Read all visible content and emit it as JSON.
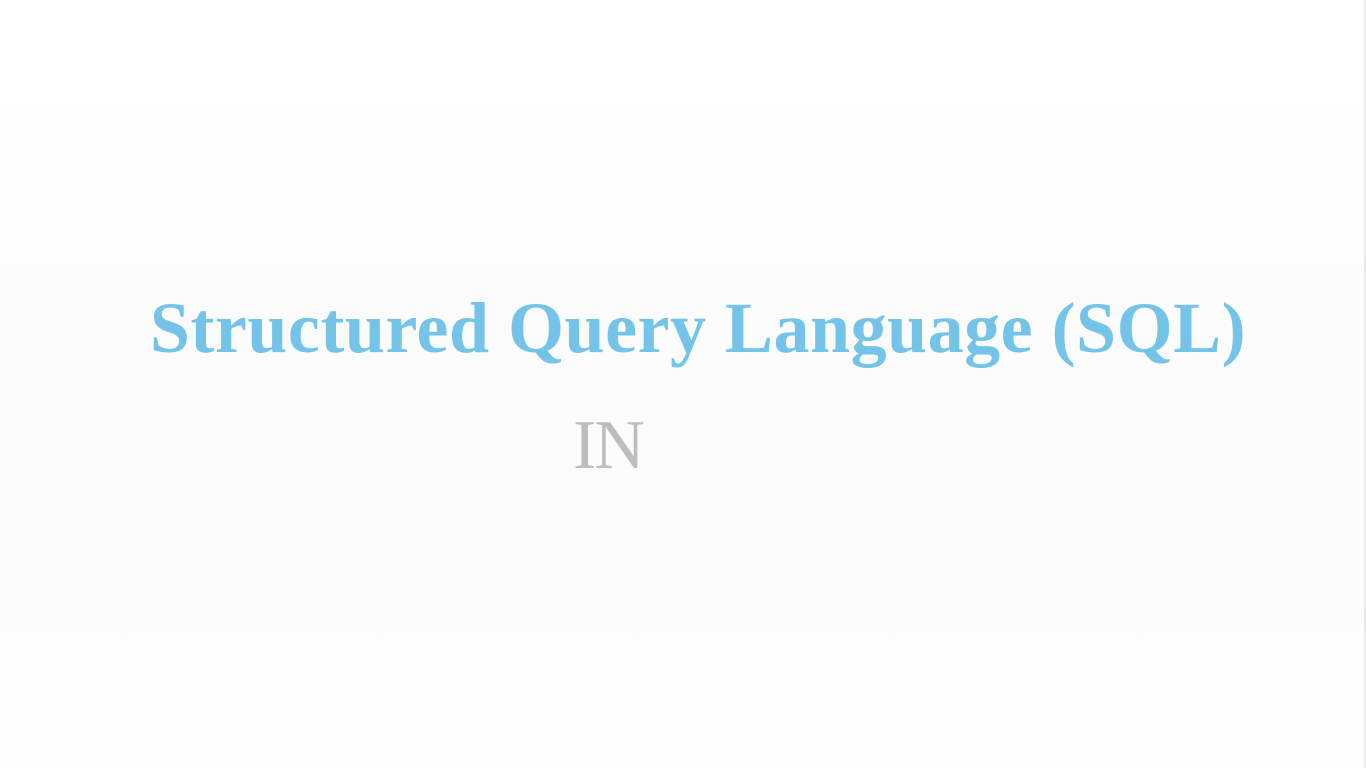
{
  "slide": {
    "title": "Structured Query Language (SQL)",
    "subtitle": "IN"
  },
  "colors": {
    "background": "#fdfdfd",
    "title": "#74c4e9",
    "subtitle": "#bdbdbd"
  }
}
